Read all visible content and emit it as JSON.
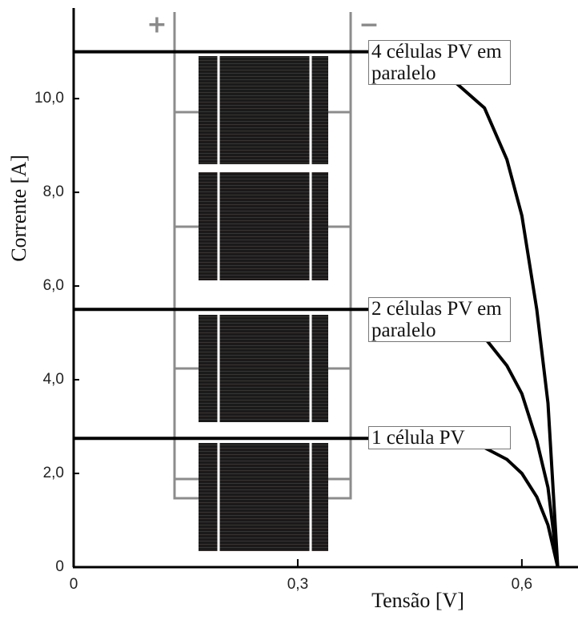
{
  "chart_data": {
    "type": "line",
    "xlabel": "Tensão [V]",
    "ylabel": "Corrente [A]",
    "symbols": [
      "+",
      "−"
    ],
    "x": [
      0,
      0.1,
      0.2,
      0.3,
      0.4,
      0.45,
      0.5,
      0.55,
      0.58,
      0.6,
      0.62,
      0.635,
      0.648
    ],
    "series": [
      {
        "name": "4 células PV em paralelo",
        "color": "#000000",
        "values": [
          11.0,
          11.0,
          11.0,
          11.0,
          11.0,
          10.9,
          10.5,
          9.8,
          8.7,
          7.5,
          5.5,
          3.5,
          0
        ]
      },
      {
        "name": "2 células PV em paralelo",
        "color": "#000000",
        "values": [
          5.5,
          5.5,
          5.5,
          5.5,
          5.5,
          5.45,
          5.35,
          4.9,
          4.3,
          3.7,
          2.7,
          1.7,
          0
        ]
      },
      {
        "name": "1 célula PV",
        "color": "#000000",
        "values": [
          2.75,
          2.75,
          2.75,
          2.75,
          2.75,
          2.74,
          2.7,
          2.55,
          2.3,
          2.0,
          1.5,
          0.9,
          0
        ]
      }
    ],
    "xlim": [
      0,
      0.673
    ],
    "ylim": [
      0,
      11.9
    ],
    "xticks": [
      0,
      {
        "value": 0.3,
        "label": "0,3"
      },
      {
        "value": 0.6,
        "label": "0,6"
      }
    ],
    "yticks": [
      0,
      {
        "value": 2,
        "label": "2,0"
      },
      {
        "value": 4,
        "label": "4,0"
      },
      {
        "value": 6,
        "label": "6,0"
      },
      {
        "value": 8,
        "label": "8,0"
      },
      {
        "value": 10,
        "label": "10,0"
      }
    ]
  }
}
